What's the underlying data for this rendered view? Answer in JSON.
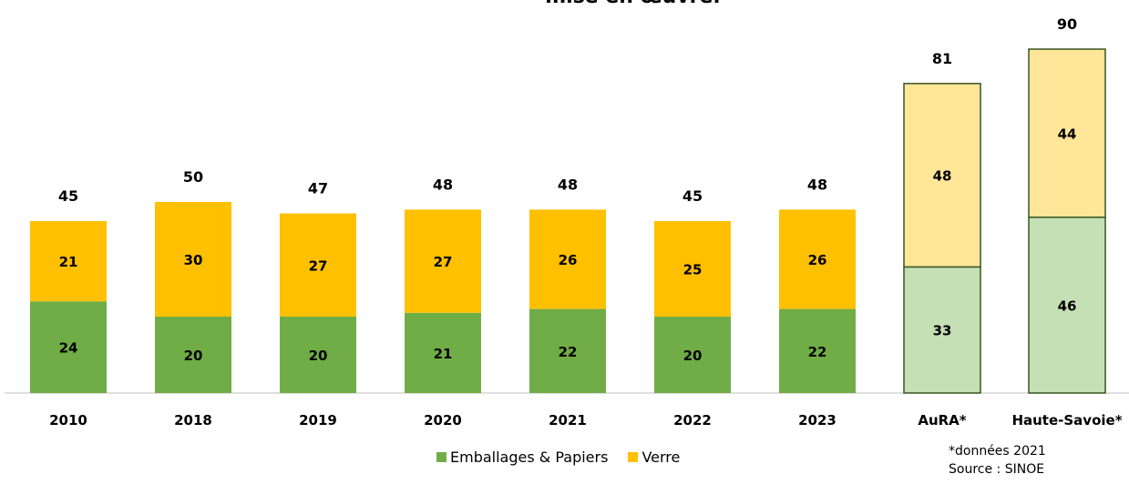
{
  "chart_data": {
    "type": "bar",
    "stacked": true,
    "title": "mise en œuvre.",
    "categories": [
      "2010",
      "2018",
      "2019",
      "2020",
      "2021",
      "2022",
      "2023",
      "AuRA*",
      "Haute-Savoie*"
    ],
    "series": [
      {
        "name": "Emballages & Papiers",
        "values": [
          24,
          20,
          20,
          21,
          22,
          20,
          22,
          33,
          46
        ]
      },
      {
        "name": "Verre",
        "values": [
          21,
          30,
          27,
          27,
          26,
          25,
          26,
          48,
          44
        ]
      }
    ],
    "totals": [
      45,
      50,
      47,
      48,
      48,
      45,
      48,
      81,
      90
    ],
    "ylim": [
      0,
      90
    ],
    "xlabel": "",
    "ylabel": "",
    "grid": false,
    "legend": "bottom",
    "colors": {
      "emballages": "#70ad47",
      "verre": "#ffc000",
      "emballages_light": "#c5e0b4",
      "verre_light": "#ffe699",
      "outline": "#375623"
    },
    "reference_categories": [
      "AuRA*",
      "Haute-Savoie*"
    ]
  },
  "notes": {
    "line1": "*données 2021",
    "line2": "Source : SINOE"
  }
}
